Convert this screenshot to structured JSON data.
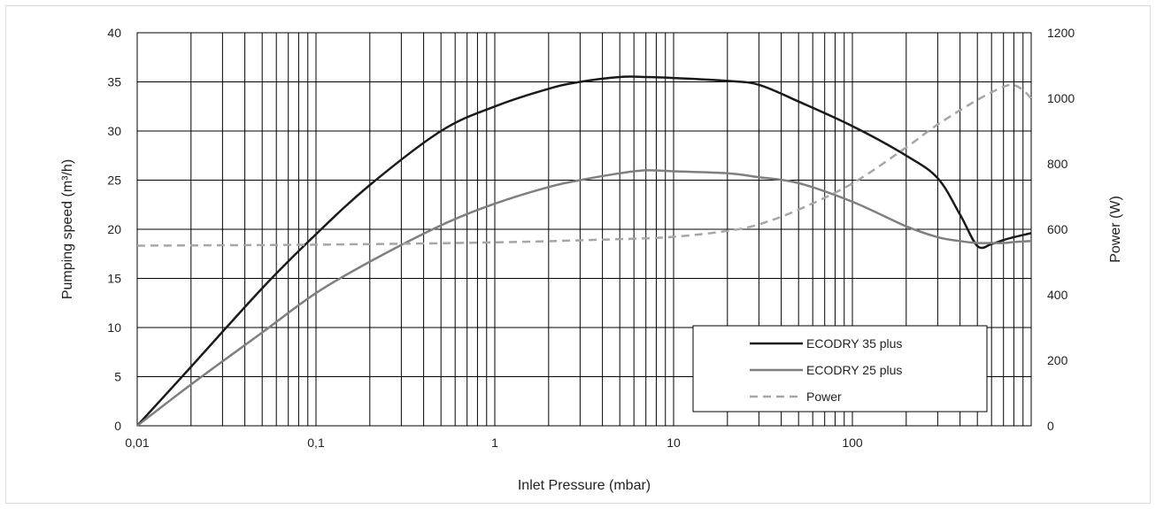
{
  "chart_data": {
    "type": "line",
    "xlabel": "Inlet Pressure (mbar)",
    "ylabel": "Pumping speed (m³/h)",
    "y2label": "Power (W)",
    "x_scale": "log",
    "xlim": [
      0.01,
      1000
    ],
    "ylim": [
      0,
      40
    ],
    "y2lim": [
      0,
      1200
    ],
    "x_ticks": [
      0.01,
      0.1,
      1,
      10,
      100
    ],
    "x_tick_labels": [
      "0,01",
      "0,1",
      "1",
      "10",
      "100"
    ],
    "y_ticks": [
      0,
      5,
      10,
      15,
      20,
      25,
      30,
      35,
      40
    ],
    "y_tick_labels": [
      "0",
      "5",
      "10",
      "15",
      "20",
      "25",
      "30",
      "35",
      "40"
    ],
    "y2_ticks": [
      0,
      200,
      400,
      600,
      800,
      1000,
      1200
    ],
    "y2_tick_labels": [
      "0",
      "200",
      "400",
      "600",
      "800",
      "1000",
      "1200"
    ],
    "grid": true,
    "legend_position": "bottom-right",
    "series": [
      {
        "name": "ECODRY 35 plus",
        "axis": "left",
        "color": "#1a1a1a",
        "dash": "solid",
        "x": [
          0.01,
          0.02,
          0.05,
          0.1,
          0.2,
          0.5,
          1,
          2,
          3,
          5,
          7,
          10,
          20,
          30,
          50,
          100,
          200,
          300,
          400,
          500,
          600,
          700,
          800,
          1000
        ],
        "y": [
          0,
          6,
          14,
          19.5,
          24.5,
          30,
          32.5,
          34.3,
          35,
          35.5,
          35.5,
          35.4,
          35.1,
          34.7,
          33,
          30.5,
          27.5,
          25.2,
          21.5,
          18.3,
          18.5,
          18.9,
          19.2,
          19.6
        ]
      },
      {
        "name": "ECODRY 25 plus",
        "axis": "left",
        "color": "#7f7f7f",
        "dash": "solid",
        "x": [
          0.01,
          0.02,
          0.05,
          0.1,
          0.2,
          0.5,
          1,
          2,
          3,
          5,
          7,
          10,
          20,
          30,
          50,
          100,
          200,
          300,
          400,
          500,
          600,
          700,
          800,
          1000
        ],
        "y": [
          0,
          4.2,
          9.5,
          13.5,
          16.7,
          20.4,
          22.6,
          24.3,
          25,
          25.7,
          26,
          25.9,
          25.7,
          25.3,
          24.7,
          22.8,
          20.3,
          19.2,
          18.8,
          18.6,
          18.6,
          18.6,
          18.7,
          18.8
        ]
      },
      {
        "name": "Power",
        "axis": "right",
        "color": "#a6a6a6",
        "dash": "dashed",
        "x": [
          0.01,
          0.1,
          1,
          5,
          10,
          20,
          30,
          50,
          100,
          200,
          300,
          500,
          700,
          800,
          900,
          1000
        ],
        "y": [
          550,
          553,
          560,
          570,
          577,
          595,
          615,
          660,
          740,
          850,
          920,
          995,
          1035,
          1040,
          1025,
          1000
        ]
      }
    ]
  }
}
